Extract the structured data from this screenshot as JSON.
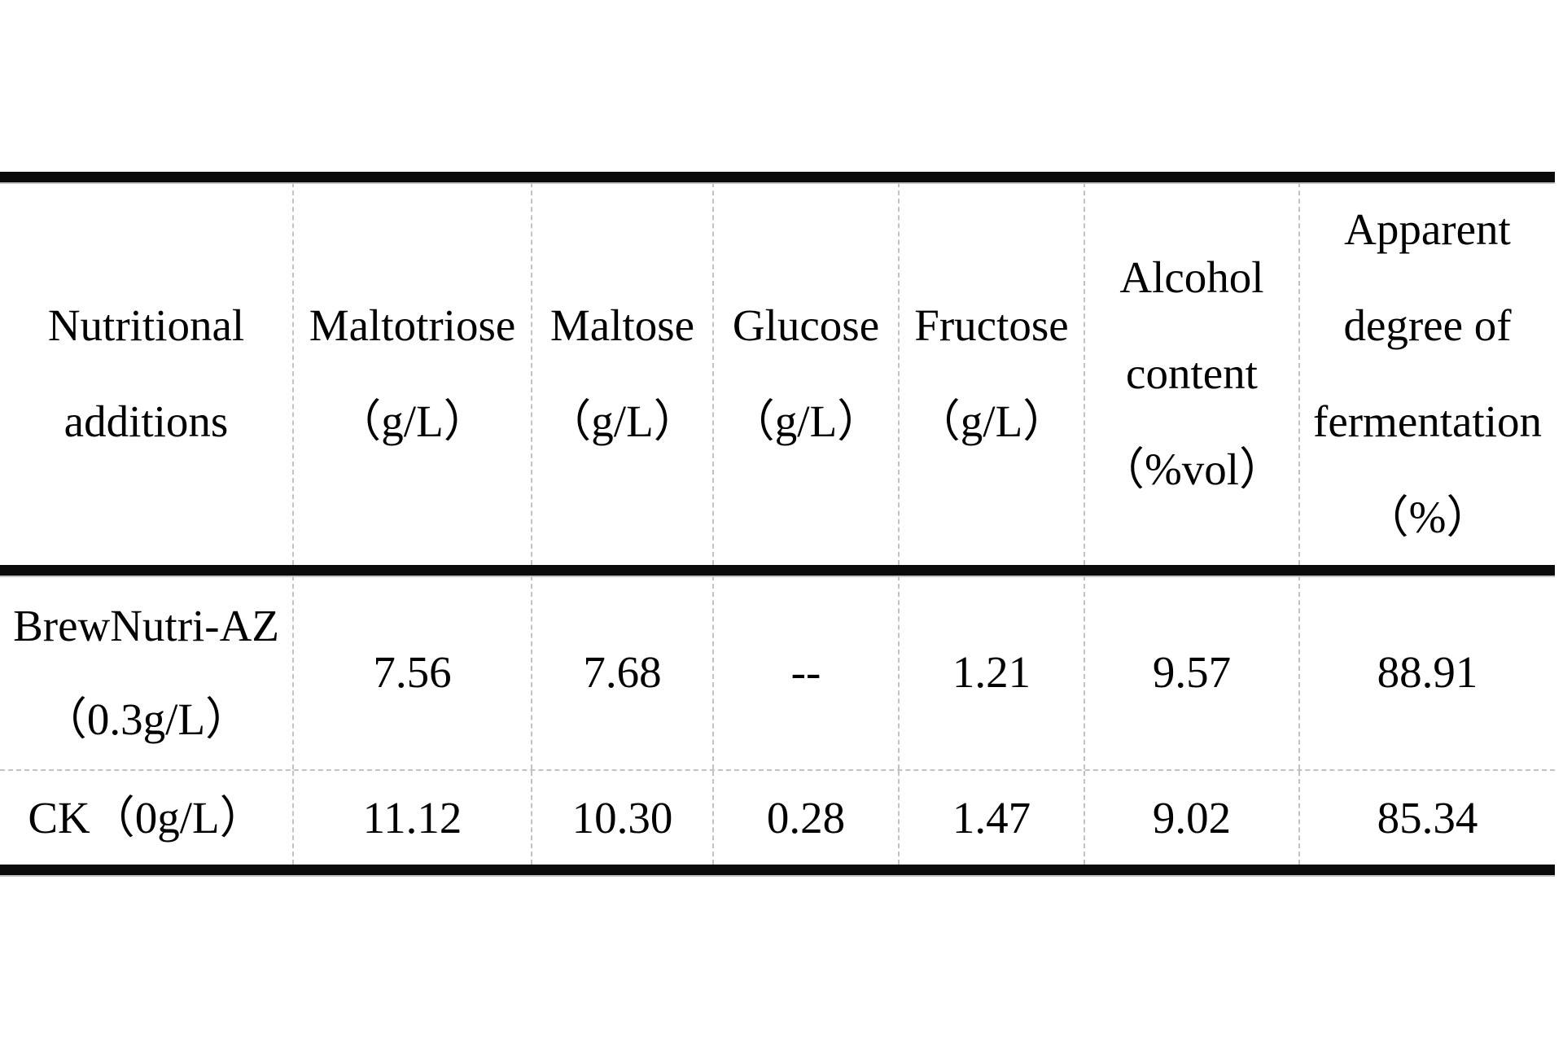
{
  "table": {
    "columns": [
      {
        "id": "nutritional-additions",
        "lines": [
          "Nutritional",
          "additions"
        ]
      },
      {
        "id": "maltotriose",
        "lines": [
          "Maltotriose",
          "（g/L）"
        ]
      },
      {
        "id": "maltose",
        "lines": [
          "Maltose",
          "（g/L）"
        ]
      },
      {
        "id": "glucose",
        "lines": [
          "Glucose",
          "（g/L）"
        ]
      },
      {
        "id": "fructose",
        "lines": [
          "Fructose",
          "（g/L）"
        ]
      },
      {
        "id": "alcohol-content",
        "lines": [
          "Alcohol",
          "content",
          "（%vol）"
        ]
      },
      {
        "id": "apparent-degree-of-fermentation",
        "lines": [
          "Apparent",
          "degree of",
          "fermentation",
          "（%）"
        ]
      }
    ],
    "rows": [
      {
        "label": [
          "BrewNutri-AZ",
          "（0.3g/L）"
        ],
        "values": [
          "7.56",
          "7.68",
          "--",
          "1.21",
          "9.57",
          "88.91"
        ]
      },
      {
        "label": [
          "CK（0g/L）"
        ],
        "values": [
          "11.12",
          "10.30",
          "0.28",
          "1.47",
          "9.02",
          "85.34"
        ]
      }
    ]
  },
  "chart_data": {
    "type": "table",
    "title": "",
    "columns": [
      "Nutritional additions",
      "Maltotriose（g/L）",
      "Maltose（g/L）",
      "Glucose（g/L）",
      "Fructose（g/L）",
      "Alcohol content（%vol）",
      "Apparent degree of fermentation（%）"
    ],
    "rows": [
      [
        "BrewNutri-AZ（0.3g/L）",
        "7.56",
        "7.68",
        "--",
        "1.21",
        "9.57",
        "88.91"
      ],
      [
        "CK（0g/L）",
        "11.12",
        "10.30",
        "0.28",
        "1.47",
        "9.02",
        "85.34"
      ]
    ]
  },
  "colors": {
    "background": "#ffffff",
    "text": "#000000",
    "heavy_rule": "#0a0a0a",
    "dashed_divider": "#c2c2c2"
  }
}
